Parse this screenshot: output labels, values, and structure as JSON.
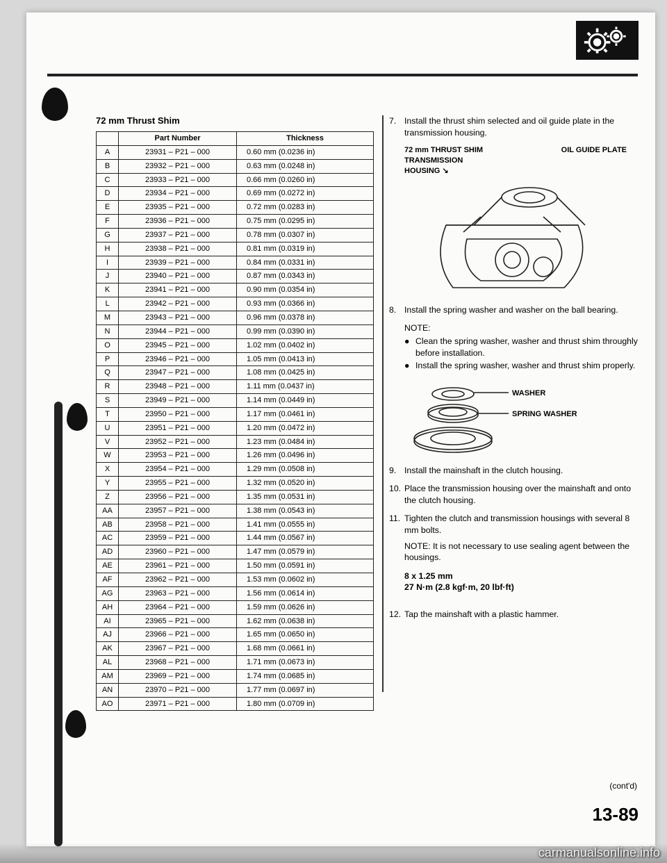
{
  "table": {
    "title": "72 mm Thrust Shim",
    "columns": [
      "",
      "Part Number",
      "Thickness"
    ],
    "rows": [
      [
        "A",
        "23931 – P21 – 000",
        "0.60 mm (0.0236 in)"
      ],
      [
        "B",
        "23932 – P21 – 000",
        "0.63 mm (0.0248 in)"
      ],
      [
        "C",
        "23933 – P21 – 000",
        "0.66 mm (0.0260 in)"
      ],
      [
        "D",
        "23934 – P21 – 000",
        "0.69 mm (0.0272 in)"
      ],
      [
        "E",
        "23935 – P21 – 000",
        "0.72 mm (0.0283 in)"
      ],
      [
        "F",
        "23936 – P21 – 000",
        "0.75 mm (0.0295 in)"
      ],
      [
        "G",
        "23937 – P21 – 000",
        "0.78 mm (0.0307 in)"
      ],
      [
        "H",
        "23938 – P21 – 000",
        "0.81 mm (0.0319 in)"
      ],
      [
        "I",
        "23939 – P21 – 000",
        "0.84 mm (0.0331 in)"
      ],
      [
        "J",
        "23940 – P21 – 000",
        "0.87 mm (0.0343 in)"
      ],
      [
        "K",
        "23941 – P21 – 000",
        "0.90 mm (0.0354 in)"
      ],
      [
        "L",
        "23942 – P21 – 000",
        "0.93 mm (0.0366 in)"
      ],
      [
        "M",
        "23943 – P21 – 000",
        "0.96 mm (0.0378 in)"
      ],
      [
        "N",
        "23944 – P21 – 000",
        "0.99 mm (0.0390 in)"
      ],
      [
        "O",
        "23945 – P21 – 000",
        "1.02 mm (0.0402 in)"
      ],
      [
        "P",
        "23946 – P21 – 000",
        "1.05 mm (0.0413 in)"
      ],
      [
        "Q",
        "23947 – P21 – 000",
        "1.08 mm (0.0425 in)"
      ],
      [
        "R",
        "23948 – P21 – 000",
        "1.11 mm (0.0437 in)"
      ],
      [
        "S",
        "23949 – P21 – 000",
        "1.14 mm (0.0449 in)"
      ],
      [
        "T",
        "23950 – P21 – 000",
        "1.17 mm (0.0461 in)"
      ],
      [
        "U",
        "23951 – P21 – 000",
        "1.20 mm (0.0472 in)"
      ],
      [
        "V",
        "23952 – P21 – 000",
        "1.23 mm (0.0484 in)"
      ],
      [
        "W",
        "23953 – P21 – 000",
        "1.26 mm (0.0496 in)"
      ],
      [
        "X",
        "23954 – P21 – 000",
        "1.29 mm (0.0508 in)"
      ],
      [
        "Y",
        "23955 – P21 – 000",
        "1.32 mm (0.0520 in)"
      ],
      [
        "Z",
        "23956 – P21 – 000",
        "1.35 mm (0.0531 in)"
      ],
      [
        "AA",
        "23957 – P21 – 000",
        "1.38 mm (0.0543 in)"
      ],
      [
        "AB",
        "23958 – P21 – 000",
        "1.41 mm (0.0555 in)"
      ],
      [
        "AC",
        "23959 – P21 – 000",
        "1.44 mm (0.0567 in)"
      ],
      [
        "AD",
        "23960 – P21 – 000",
        "1.47 mm (0.0579 in)"
      ],
      [
        "AE",
        "23961 – P21 – 000",
        "1.50 mm (0.0591 in)"
      ],
      [
        "AF",
        "23962 – P21 – 000",
        "1.53 mm (0.0602 in)"
      ],
      [
        "AG",
        "23963 – P21 – 000",
        "1.56 mm (0.0614 in)"
      ],
      [
        "AH",
        "23964 – P21 – 000",
        "1.59 mm (0.0626 in)"
      ],
      [
        "AI",
        "23965 – P21 – 000",
        "1.62 mm (0.0638 in)"
      ],
      [
        "AJ",
        "23966 – P21 – 000",
        "1.65 mm (0.0650 in)"
      ],
      [
        "AK",
        "23967 – P21 – 000",
        "1.68 mm (0.0661 in)"
      ],
      [
        "AL",
        "23968 – P21 – 000",
        "1.71 mm (0.0673 in)"
      ],
      [
        "AM",
        "23969 – P21 – 000",
        "1.74 mm (0.0685 in)"
      ],
      [
        "AN",
        "23970 – P21 – 000",
        "1.77 mm (0.0697 in)"
      ],
      [
        "AO",
        "23971 – P21 – 000",
        "1.80 mm (0.0709 in)"
      ]
    ]
  },
  "right": {
    "step7": {
      "num": "7.",
      "text": "Install the thrust shim selected and oil guide plate in the transmission housing."
    },
    "fig1": {
      "label_shim": "72 mm THRUST SHIM",
      "label_plate": "OIL GUIDE PLATE",
      "label_housing_a": "TRANSMISSION",
      "label_housing_b": "HOUSING"
    },
    "step8": {
      "num": "8.",
      "text": "Install the spring washer and washer on the ball bearing."
    },
    "note_h": "NOTE:",
    "bullets": [
      "Clean the spring washer, washer and thrust shim throughly before installation.",
      "Install the spring washer, washer and thrust shim properly."
    ],
    "fig2": {
      "label_washer": "WASHER",
      "label_spring": "SPRING WASHER"
    },
    "step9": {
      "num": "9.",
      "text": "Install the mainshaft in the clutch housing."
    },
    "step10": {
      "num": "10.",
      "text": "Place the transmission housing over the mainshaft and onto the clutch housing."
    },
    "step11": {
      "num": "11.",
      "text": "Tighten the clutch and transmission housings with several 8 mm bolts."
    },
    "note_inline": "NOTE: It is not necessary to use sealing agent between the housings.",
    "torque1": "8 x 1.25 mm",
    "torque2": "27 N·m (2.8 kgf·m, 20 lbf·ft)",
    "step12": {
      "num": "12.",
      "text": "Tap the mainshaft with a plastic hammer."
    }
  },
  "contd": "(cont'd)",
  "page_number": "13-89",
  "watermark": "carmanualsonline.info"
}
